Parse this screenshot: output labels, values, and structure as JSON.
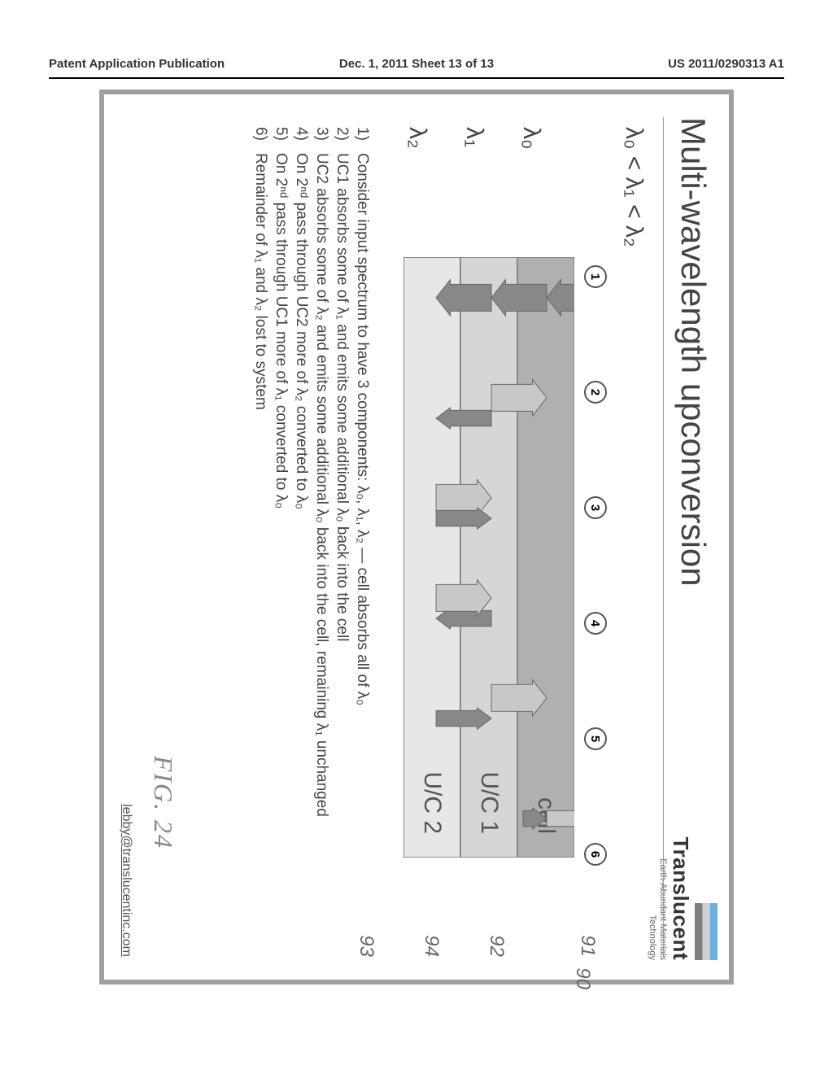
{
  "page_header": {
    "left": "Patent Application Publication",
    "center": "Dec. 1, 2011  Sheet 13 of 13",
    "right": "US 2011/0290313 A1"
  },
  "slide": {
    "title": "Multi-wavelength upconversion",
    "logo": {
      "name": "Translucent",
      "sub1": "Earth-Abundant Materials",
      "sub2": "Technology"
    },
    "inequality": "λ₀ < λ₁ < λ₂",
    "refs": {
      "r90": "90",
      "r91": "91",
      "r92": "92",
      "r94": "94",
      "r93": "93"
    },
    "circled": [
      "1",
      "2",
      "3",
      "4",
      "5",
      "6"
    ],
    "layers": {
      "cell": "cell",
      "uc1": "U/C 1",
      "uc2": "U/C 2"
    },
    "row_labels": {
      "l0": "λ₀",
      "l1": "λ₁",
      "l2": "λ₂"
    },
    "notes": [
      "Consider input spectrum to have 3 components: λ₀, λ₁, λ₂ — cell absorbs all of λ₀",
      "UC1 absorbs some of λ₁ and emits some additional λ₀ back into the cell",
      "UC2 absorbs some of λ₂ and emits some additional λ₀ back into the cell, remaining λ₁ unchanged",
      "On 2ⁿᵈ pass through UC2 more of λ₂ converted to λ₀",
      "On 2ⁿᵈ pass through UC1 more of λ₁ converted to λ₀",
      "Remainder of λ₁ and λ₂ lost to system"
    ],
    "fig_label": "FIG. 24",
    "email": "lebby@translucentinc.com"
  },
  "style": {
    "colors": {
      "page_bg": "#ffffff",
      "slide_border": "#a0a0a0",
      "text_muted": "#555555",
      "layer_cell": "#b0b0b0",
      "layer_uc1": "#d6d6d6",
      "layer_uc2": "#e7e7e7",
      "arrow_dark": "#888888",
      "arrow_light": "#c8c8c8"
    },
    "fonts": {
      "title_pt": 42,
      "body_pt": 19,
      "label_pt": 30
    }
  },
  "arrows": [
    {
      "col": 0,
      "from": "top",
      "to": "cell",
      "dir": "down",
      "tone": "dark",
      "wide": true
    },
    {
      "col": 0,
      "from": "cell",
      "to": "uc1",
      "dir": "down",
      "tone": "dark",
      "wide": true
    },
    {
      "col": 0,
      "from": "uc1",
      "to": "uc2",
      "dir": "down",
      "tone": "dark",
      "wide": true
    },
    {
      "col": 1,
      "from": "uc1",
      "to": "cell",
      "dir": "up",
      "tone": "light",
      "wide": true
    },
    {
      "col": 1,
      "from": "uc1",
      "to": "uc2",
      "dir": "down",
      "tone": "dark",
      "wide": false
    },
    {
      "col": 2,
      "from": "uc2",
      "to": "uc1",
      "dir": "up",
      "tone": "light",
      "wide": true
    },
    {
      "col": 2,
      "from": "uc2",
      "to": "uc1",
      "dir": "up",
      "tone": "dark",
      "wide": false
    },
    {
      "col": 3,
      "from": "uc2",
      "to": "uc1",
      "dir": "down",
      "tone": "dark",
      "wide": false
    },
    {
      "col": 3,
      "from": "uc2",
      "to": "uc1",
      "dir": "up",
      "tone": "light",
      "wide": true
    },
    {
      "col": 4,
      "from": "uc1",
      "to": "cell",
      "dir": "up",
      "tone": "light",
      "wide": true
    },
    {
      "col": 4,
      "from": "uc1",
      "to": "uc2",
      "dir": "up",
      "tone": "dark",
      "wide": false
    },
    {
      "col": 5,
      "from": "cell",
      "to": "top",
      "dir": "up",
      "tone": "light",
      "wide": false
    },
    {
      "col": 5,
      "from": "cell",
      "to": "cell",
      "dir": "up",
      "tone": "dark",
      "wide": false,
      "short": true
    }
  ]
}
